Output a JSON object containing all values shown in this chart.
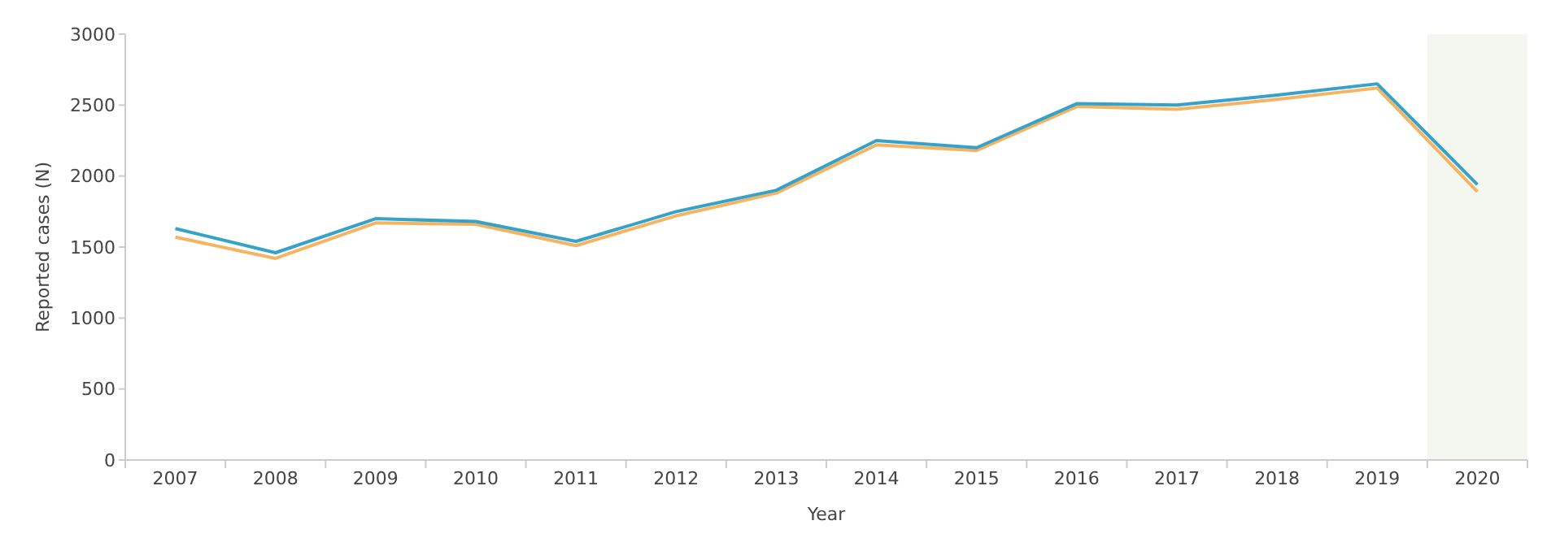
{
  "chart_data": {
    "type": "line",
    "xlabel": "Year",
    "ylabel": "Reported cases (N)",
    "categories": [
      "2007",
      "2008",
      "2009",
      "2010",
      "2011",
      "2012",
      "2013",
      "2014",
      "2015",
      "2016",
      "2017",
      "2018",
      "2019",
      "2020"
    ],
    "series": [
      {
        "color": "#f5b461",
        "values": [
          1570,
          1420,
          1670,
          1660,
          1510,
          1720,
          1880,
          2220,
          2180,
          2490,
          2470,
          2540,
          2620,
          1890
        ]
      },
      {
        "color": "#36a2c9",
        "values": [
          1630,
          1460,
          1700,
          1680,
          1540,
          1750,
          1900,
          2250,
          2200,
          2510,
          2500,
          2570,
          2650,
          1940
        ]
      }
    ],
    "ylim": [
      0,
      3000
    ],
    "yticks": [
      0,
      500,
      1000,
      1500,
      2000,
      2500,
      3000
    ],
    "grid": false,
    "bands": [
      {
        "axis": "x",
        "from": "2020",
        "to": "2020",
        "color": "#f4f7ef"
      }
    ]
  }
}
